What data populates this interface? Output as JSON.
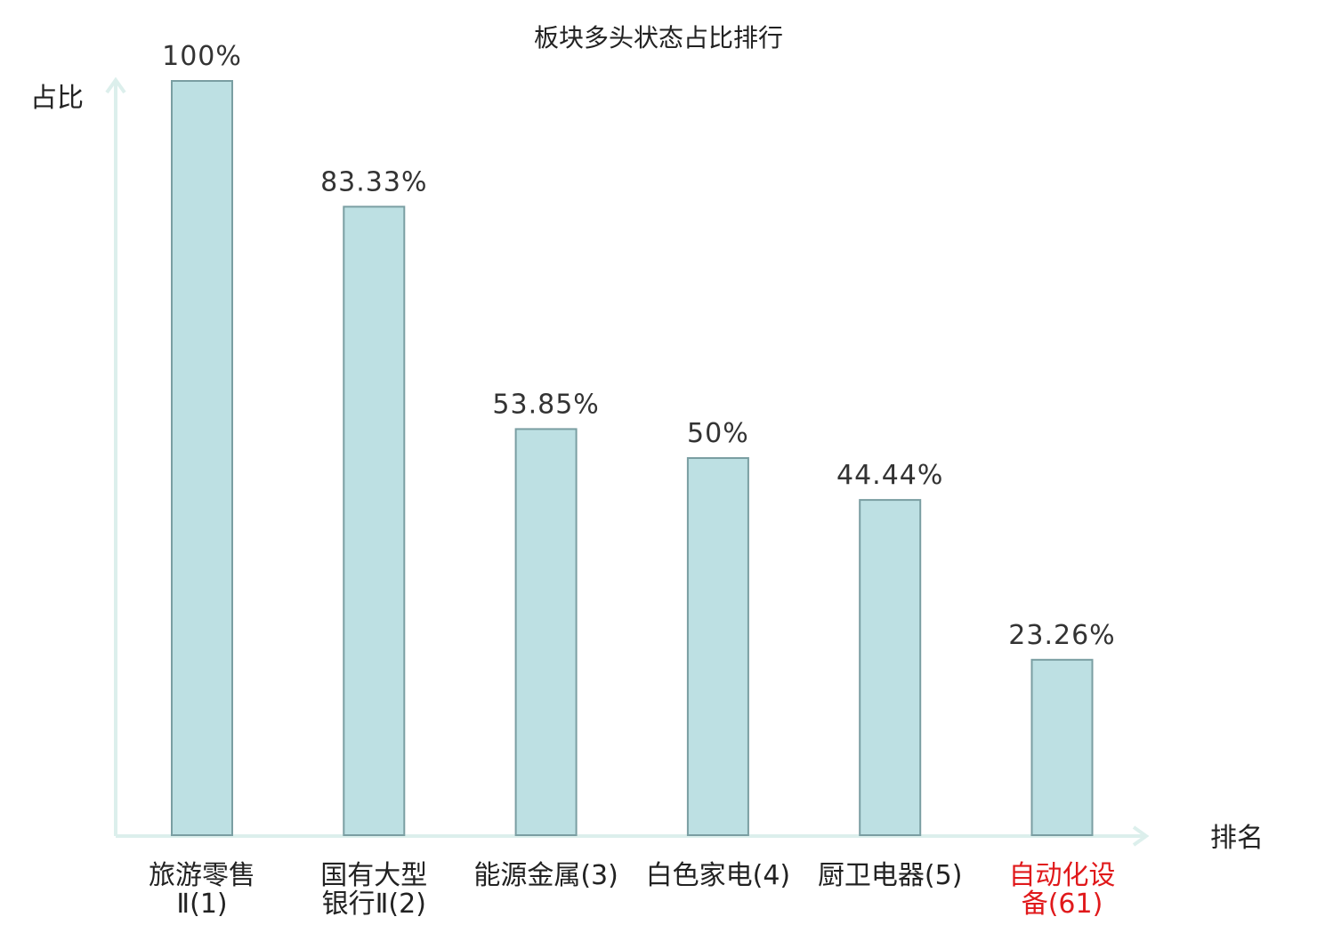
{
  "chart_data": {
    "type": "bar",
    "title": "板块多头状态占比排行",
    "ylabel": "占比",
    "xlabel": "排名",
    "ylim": [
      0,
      100
    ],
    "grid": false,
    "categories": [
      {
        "lines": [
          "旅游零售",
          "Ⅱ(1)"
        ],
        "highlight": false
      },
      {
        "lines": [
          "国有大型",
          "银行Ⅱ(2)"
        ],
        "highlight": false
      },
      {
        "lines": [
          "能源金属(3)"
        ],
        "highlight": false
      },
      {
        "lines": [
          "白色家电(4)"
        ],
        "highlight": false
      },
      {
        "lines": [
          "厨卫电器(5)"
        ],
        "highlight": false
      },
      {
        "lines": [
          "自动化设",
          "备(61)"
        ],
        "highlight": true
      }
    ],
    "values": [
      100,
      83.33,
      53.85,
      50,
      44.44,
      23.26
    ],
    "value_labels": [
      "100%",
      "83.33%",
      "53.85%",
      "50%",
      "44.44%",
      "23.26%"
    ]
  },
  "colors": {
    "bar_fill": "#bde0e3",
    "bar_stroke": "#7a9ea2",
    "axis": "#dcefec",
    "text": "#222222",
    "highlight": "#e0191b"
  }
}
